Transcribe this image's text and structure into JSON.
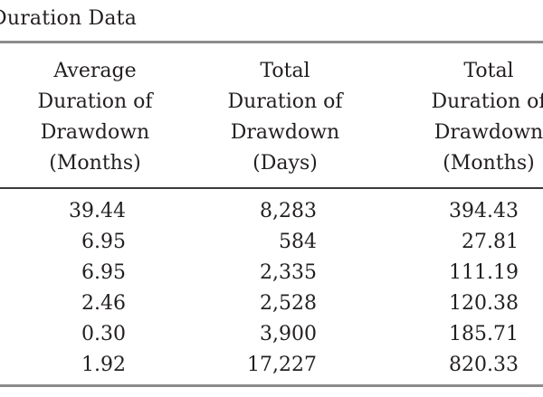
{
  "caption": "Duration Data",
  "table": {
    "headers": [
      [
        "Average",
        "Duration of",
        "Drawdown",
        "(Months)"
      ],
      [
        "Total",
        "Duration of",
        "Drawdown",
        "(Days)"
      ],
      [
        "Total",
        "Duration of",
        "Drawdown",
        "(Months)"
      ]
    ],
    "rows": [
      [
        "39.44",
        "8,283",
        "394.43"
      ],
      [
        "6.95",
        "584",
        "27.81"
      ],
      [
        "6.95",
        "2,335",
        "111.19"
      ],
      [
        "2.46",
        "2,528",
        "120.38"
      ],
      [
        "0.30",
        "3,900",
        "185.71"
      ],
      [
        "1.92",
        "17,227",
        "820.33"
      ]
    ]
  }
}
